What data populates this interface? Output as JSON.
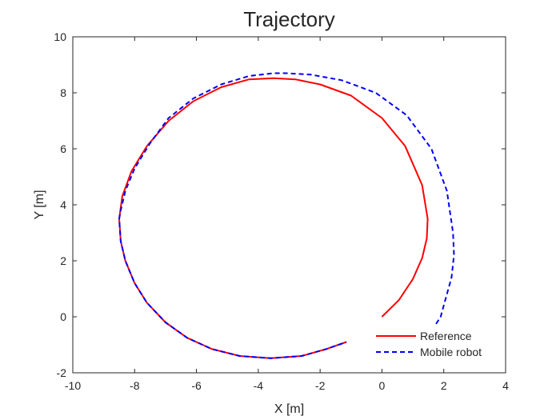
{
  "chart_data": {
    "type": "line",
    "title": "Trajectory",
    "xlabel": "X [m]",
    "ylabel": "Y [m]",
    "xlim": [
      -10,
      4
    ],
    "ylim": [
      -2,
      10
    ],
    "xticks": [
      -10,
      -8,
      -6,
      -4,
      -2,
      0,
      2,
      4
    ],
    "yticks": [
      -2,
      0,
      2,
      4,
      6,
      8,
      10
    ],
    "xtick_labels": [
      "-10",
      "-8",
      "-6",
      "-4",
      "-2",
      "0",
      "2",
      "4"
    ],
    "ytick_labels": [
      "-2",
      "0",
      "2",
      "4",
      "6",
      "8",
      "10"
    ],
    "grid": false,
    "legend_position": "bottom-right",
    "series": [
      {
        "name": "Reference",
        "style": "solid",
        "color": "#ff0000",
        "x": [
          0.0,
          0.55,
          1.0,
          1.3,
          1.45,
          1.48,
          1.3,
          0.75,
          0.0,
          -1.0,
          -2.0,
          -2.8,
          -3.5,
          -4.3,
          -5.2,
          -6.1,
          -6.9,
          -7.6,
          -8.1,
          -8.4,
          -8.5,
          -8.45,
          -8.3,
          -8.0,
          -7.6,
          -7.0,
          -6.3,
          -5.5,
          -4.6,
          -3.6,
          -2.6,
          -1.8,
          -1.15
        ],
        "y": [
          0.0,
          0.6,
          1.35,
          2.1,
          2.8,
          3.5,
          4.7,
          6.1,
          7.1,
          7.9,
          8.3,
          8.48,
          8.52,
          8.48,
          8.2,
          7.7,
          7.0,
          6.1,
          5.2,
          4.3,
          3.5,
          2.7,
          2.0,
          1.2,
          0.5,
          -0.2,
          -0.75,
          -1.15,
          -1.4,
          -1.48,
          -1.4,
          -1.15,
          -0.9
        ]
      },
      {
        "name": "Mobile robot",
        "style": "dashed",
        "color": "#0000ff",
        "x": [
          1.75,
          1.9,
          2.05,
          2.25,
          2.33,
          2.3,
          2.1,
          1.6,
          0.8,
          -0.2,
          -1.3,
          -2.3,
          -3.1,
          -3.5,
          -4.3,
          -5.2,
          -6.1,
          -6.9,
          -7.5,
          -8.0,
          -8.3,
          -8.45,
          -8.5,
          -8.45,
          -8.3,
          -8.0,
          -7.6,
          -7.0,
          -6.3,
          -5.5,
          -4.6,
          -3.6,
          -2.6,
          -1.8,
          -1.15
        ],
        "y": [
          -0.25,
          0.0,
          0.6,
          1.4,
          2.2,
          3.0,
          4.5,
          6.0,
          7.2,
          8.0,
          8.45,
          8.65,
          8.7,
          8.7,
          8.6,
          8.3,
          7.8,
          7.1,
          6.2,
          5.3,
          4.5,
          3.8,
          3.5,
          2.7,
          2.0,
          1.2,
          0.5,
          -0.2,
          -0.75,
          -1.15,
          -1.4,
          -1.48,
          -1.4,
          -1.15,
          -0.9
        ]
      }
    ]
  }
}
